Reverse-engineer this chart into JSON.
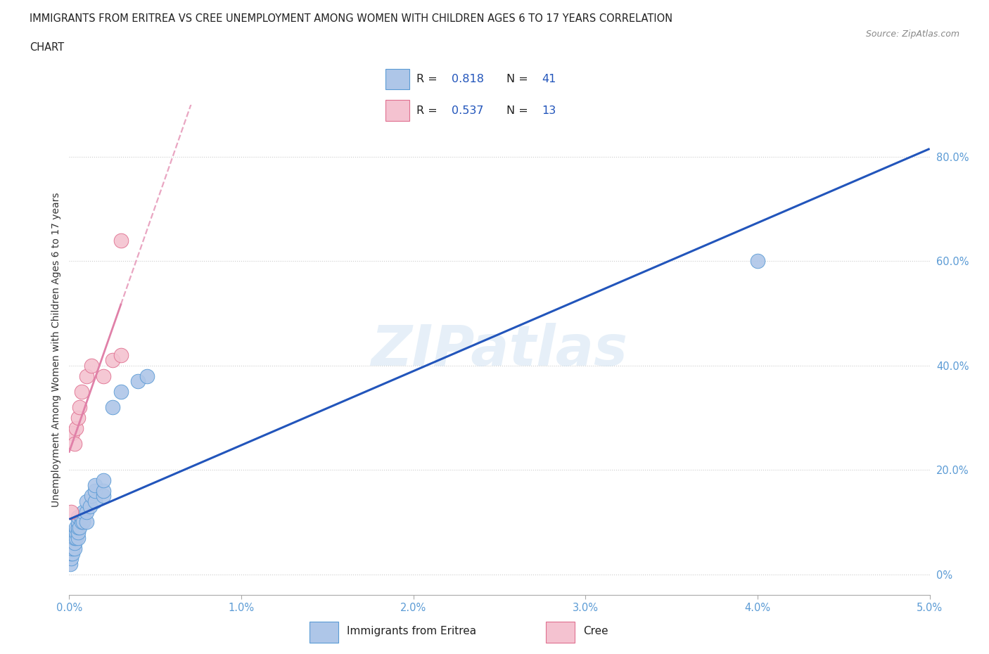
{
  "title_line1": "IMMIGRANTS FROM ERITREA VS CREE UNEMPLOYMENT AMONG WOMEN WITH CHILDREN AGES 6 TO 17 YEARS CORRELATION",
  "title_line2": "CHART",
  "source": "Source: ZipAtlas.com",
  "ylabel": "Unemployment Among Women with Children Ages 6 to 17 years",
  "xlim": [
    0.0,
    0.05
  ],
  "ylim": [
    -0.04,
    0.9
  ],
  "xtick_vals": [
    0.0,
    0.01,
    0.02,
    0.03,
    0.04,
    0.05
  ],
  "xtick_labels": [
    "0.0%",
    "1.0%",
    "2.0%",
    "3.0%",
    "4.0%",
    "5.0%"
  ],
  "ytick_vals": [
    0.0,
    0.2,
    0.4,
    0.6,
    0.8
  ],
  "ytick_labels": [
    "0%",
    "20.0%",
    "40.0%",
    "60.0%",
    "80.0%"
  ],
  "eritrea_color": "#aec6e8",
  "eritrea_edge": "#5b9bd5",
  "cree_color": "#f4c2d0",
  "cree_edge": "#e07090",
  "line_eritrea_color": "#2255bb",
  "line_cree_color": "#e080a8",
  "ytick_color": "#5b9bd5",
  "xtick_color": "#5b9bd5",
  "R_eritrea": 0.818,
  "N_eritrea": 41,
  "R_cree": 0.537,
  "N_cree": 13,
  "legend_text_color": "#2255bb",
  "watermark": "ZIPatlas",
  "background_color": "#ffffff",
  "eritrea_x": [
    5e-05,
    0.0001,
    0.0001,
    0.0001,
    0.0002,
    0.0002,
    0.0002,
    0.0002,
    0.0003,
    0.0003,
    0.0003,
    0.0003,
    0.0004,
    0.0004,
    0.0004,
    0.0005,
    0.0005,
    0.0005,
    0.0005,
    0.0005,
    0.0006,
    0.0007,
    0.0007,
    0.0008,
    0.0008,
    0.001,
    0.001,
    0.001,
    0.0012,
    0.0013,
    0.0015,
    0.0015,
    0.0015,
    0.002,
    0.002,
    0.002,
    0.0025,
    0.003,
    0.004,
    0.0045,
    0.04
  ],
  "eritrea_y": [
    0.02,
    0.03,
    0.04,
    0.05,
    0.04,
    0.05,
    0.06,
    0.07,
    0.05,
    0.06,
    0.07,
    0.08,
    0.07,
    0.08,
    0.09,
    0.07,
    0.08,
    0.09,
    0.1,
    0.11,
    0.09,
    0.1,
    0.11,
    0.1,
    0.12,
    0.1,
    0.12,
    0.14,
    0.13,
    0.15,
    0.14,
    0.16,
    0.17,
    0.15,
    0.16,
    0.18,
    0.32,
    0.35,
    0.37,
    0.38,
    0.6
  ],
  "cree_x": [
    0.0001,
    0.0002,
    0.0003,
    0.0004,
    0.0005,
    0.0006,
    0.0007,
    0.001,
    0.0013,
    0.002,
    0.0025,
    0.003,
    0.003
  ],
  "cree_y": [
    0.12,
    0.27,
    0.25,
    0.28,
    0.3,
    0.32,
    0.35,
    0.38,
    0.4,
    0.38,
    0.41,
    0.42,
    0.64
  ]
}
